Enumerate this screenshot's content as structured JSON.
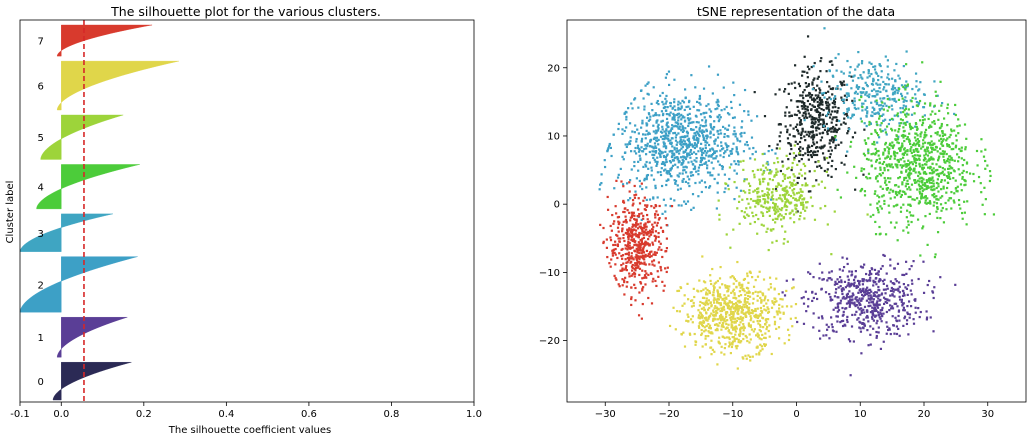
{
  "chart_data": [
    {
      "type": "area",
      "title": "The silhouette plot for the various clusters.",
      "xlabel": "The silhouette coefficient values",
      "ylabel": "Cluster label",
      "xlim": [
        -0.1,
        1.0
      ],
      "xticks": [
        "-0.1",
        "0.0",
        "0.2",
        "0.4",
        "0.6",
        "0.8",
        "1.0"
      ],
      "xtick_values": [
        -0.1,
        0.0,
        0.2,
        0.4,
        0.6,
        0.8,
        1.0
      ],
      "average_silhouette": 0.055,
      "average_line_color": "#d62728",
      "clusters": [
        {
          "label": "0",
          "color": "#2b2a55",
          "max": 0.17,
          "min": -0.02,
          "size": 0.85
        },
        {
          "label": "1",
          "color": "#5a3e96",
          "max": 0.16,
          "min": -0.01,
          "size": 0.9
        },
        {
          "label": "2",
          "color": "#3da0c6",
          "max": 0.185,
          "min": -0.1,
          "size": 1.25
        },
        {
          "label": "3",
          "color": "#3fa5c2",
          "max": 0.125,
          "min": -0.1,
          "size": 0.85
        },
        {
          "label": "4",
          "color": "#4ccc3a",
          "max": 0.19,
          "min": -0.06,
          "size": 1.0
        },
        {
          "label": "5",
          "color": "#9dd43a",
          "max": 0.15,
          "min": -0.05,
          "size": 1.0
        },
        {
          "label": "6",
          "color": "#e0d64a",
          "max": 0.285,
          "min": -0.01,
          "size": 1.1
        },
        {
          "label": "7",
          "color": "#d83a2d",
          "max": 0.22,
          "min": -0.01,
          "size": 0.7
        }
      ]
    },
    {
      "type": "scatter",
      "title": "tSNE representation of the data",
      "xlim": [
        -36,
        36
      ],
      "ylim": [
        -29,
        27
      ],
      "xticks": [
        -30,
        -20,
        -10,
        0,
        10,
        20,
        30
      ],
      "yticks": [
        -20,
        -10,
        0,
        10,
        20
      ],
      "clusters": [
        {
          "label": "0",
          "color": "#1e2a2a",
          "center": [
            3,
            12
          ],
          "spread": [
            5,
            7
          ],
          "points": 450
        },
        {
          "label": "1",
          "color": "#5a3e96",
          "center": [
            11,
            -14
          ],
          "spread": [
            8,
            5
          ],
          "points": 550
        },
        {
          "label": "2",
          "color": "#3da0c6",
          "center": [
            -18,
            9
          ],
          "spread": [
            9,
            7
          ],
          "points": 900
        },
        {
          "label": "3",
          "color": "#3fa5c2",
          "center": [
            12,
            16
          ],
          "spread": [
            7,
            5
          ],
          "points": 300
        },
        {
          "label": "4",
          "color": "#4ccc3a",
          "center": [
            19,
            6
          ],
          "spread": [
            8,
            8
          ],
          "points": 850
        },
        {
          "label": "5",
          "color": "#9dd43a",
          "center": [
            -3,
            1
          ],
          "spread": [
            6,
            5
          ],
          "points": 350
        },
        {
          "label": "6",
          "color": "#e0d64a",
          "center": [
            -10,
            -16
          ],
          "spread": [
            7,
            5
          ],
          "points": 700
        },
        {
          "label": "7",
          "color": "#d83a2d",
          "center": [
            -25,
            -6
          ],
          "spread": [
            4,
            6
          ],
          "points": 500
        }
      ]
    }
  ]
}
